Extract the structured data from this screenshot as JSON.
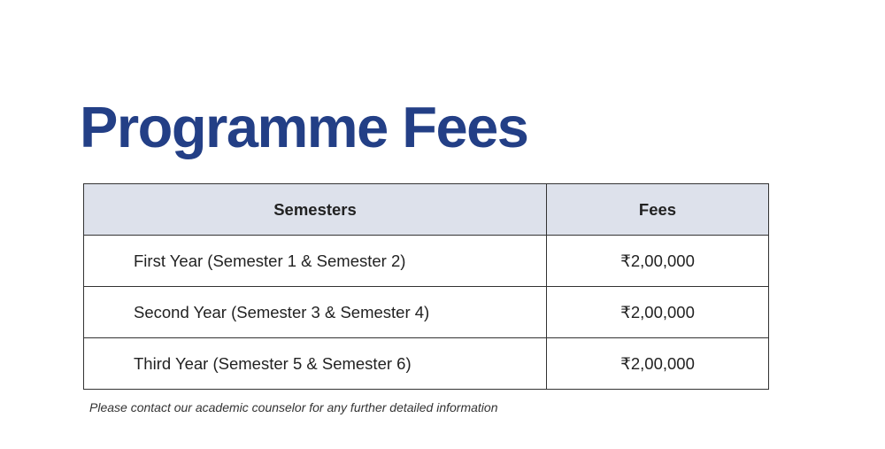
{
  "title": "Programme Fees",
  "table": {
    "headers": [
      "Semesters",
      "Fees"
    ],
    "rows": [
      {
        "semesters": "First Year (Semester 1 & Semester 2)",
        "fees": "₹2,00,000"
      },
      {
        "semesters": "Second Year (Semester 3 & Semester 4)",
        "fees": "₹2,00,000"
      },
      {
        "semesters": "Third Year (Semester 5 & Semester 6)",
        "fees": "₹2,00,000"
      }
    ]
  },
  "note": "Please contact our academic counselor for any further detailed information",
  "colors": {
    "title": "#233f86",
    "header_bg": "#dde1eb"
  }
}
